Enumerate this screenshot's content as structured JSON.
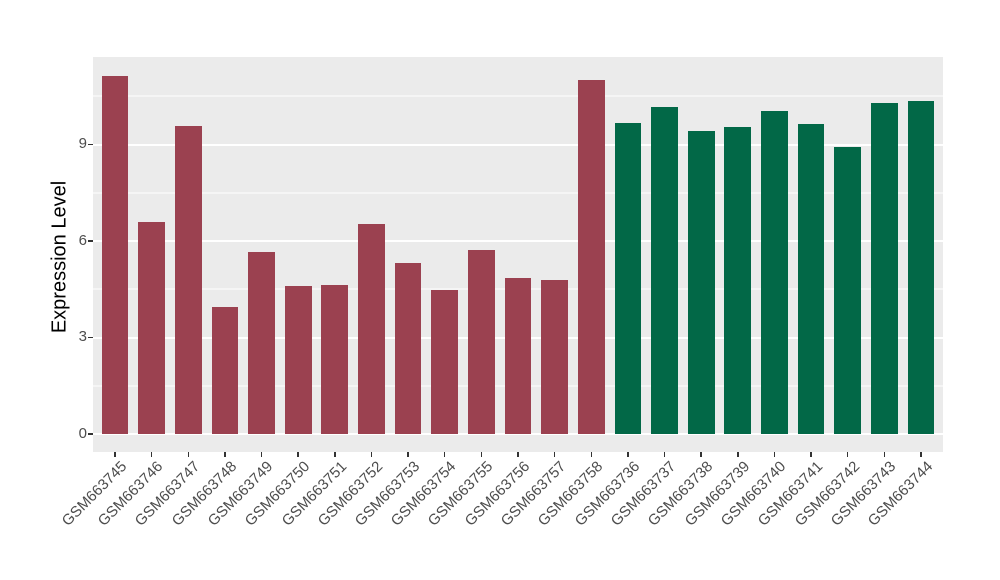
{
  "figure": {
    "background": "#FFFFFF",
    "panel_bg": "#EBEBEB",
    "grid_color": "#FFFFFF",
    "tick_mark_color": "#333333",
    "tick_label_color": "#4D4D4D",
    "axis_title_color": "#000000"
  },
  "chart_data": {
    "type": "bar",
    "title": "",
    "xlabel": "",
    "ylabel": "Expression Level",
    "legend": "none",
    "grid": true,
    "categories": [
      "GSM663745",
      "GSM663746",
      "GSM663747",
      "GSM663748",
      "GSM663749",
      "GSM663750",
      "GSM663751",
      "GSM663752",
      "GSM663753",
      "GSM663754",
      "GSM663755",
      "GSM663756",
      "GSM663757",
      "GSM663758",
      "GSM663736",
      "GSM663737",
      "GSM663738",
      "GSM663739",
      "GSM663740",
      "GSM663741",
      "GSM663742",
      "GSM663743",
      "GSM663744"
    ],
    "values": [
      11.12,
      6.59,
      9.57,
      3.95,
      5.66,
      4.6,
      4.63,
      6.53,
      5.31,
      4.48,
      5.72,
      4.85,
      4.79,
      11.0,
      9.66,
      10.16,
      9.42,
      9.54,
      10.04,
      9.65,
      8.93,
      10.29,
      10.35
    ],
    "bar_colors": [
      "#9B4150",
      "#9B4150",
      "#9B4150",
      "#9B4150",
      "#9B4150",
      "#9B4150",
      "#9B4150",
      "#9B4150",
      "#9B4150",
      "#9B4150",
      "#9B4150",
      "#9B4150",
      "#9B4150",
      "#9B4150",
      "#026847",
      "#026847",
      "#026847",
      "#026847",
      "#026847",
      "#026847",
      "#026847",
      "#026847",
      "#026847"
    ],
    "color_groups": [
      {
        "color": "#9B4150",
        "first_category": "GSM663745",
        "last_category": "GSM663758",
        "count": 14
      },
      {
        "color": "#026847",
        "first_category": "GSM663736",
        "last_category": "GSM663744",
        "count": 9
      }
    ],
    "y_ticks": [
      0,
      3,
      6,
      9
    ],
    "y_minor_ticks": [
      1.5,
      4.5,
      7.5,
      10.5
    ],
    "ylim": [
      -0.56,
      11.72
    ],
    "x_slots": 23.2,
    "x_first_center": 0.6,
    "bar_width_slots": 0.73
  }
}
